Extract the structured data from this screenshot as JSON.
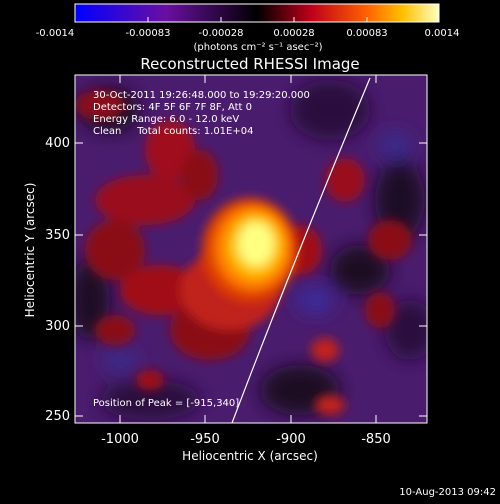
{
  "colorbar": {
    "tick_labels": [
      "-0.0014",
      "-0.00083",
      "-0.00028",
      "0.00028",
      "0.00083",
      "0.0014"
    ],
    "units_label": "(photons cm⁻² s⁻¹ asec⁻²)"
  },
  "plot": {
    "title": "Reconstructed RHESSI Image",
    "annotations": [
      "30-Oct-2011 19:26:48.000 to 19:29:20.000",
      "Detectors: 4F 5F 6F 7F 8F, Att 0",
      "Energy Range: 6.0 - 12.0 keV",
      "Clean     Total counts: 1.01E+04"
    ],
    "peak_label": "Position of Peak = [-915,340]",
    "x_axis": {
      "label": "Heliocentric X (arcsec)",
      "tick_labels": [
        "-1000",
        "-950",
        "-900",
        "-850"
      ]
    },
    "y_axis": {
      "label": "Heliocentric Y (arcsec)",
      "tick_labels": [
        "250",
        "300",
        "350",
        "400"
      ]
    }
  },
  "footer": {
    "timestamp": "10-Aug-2013 09:42"
  }
}
